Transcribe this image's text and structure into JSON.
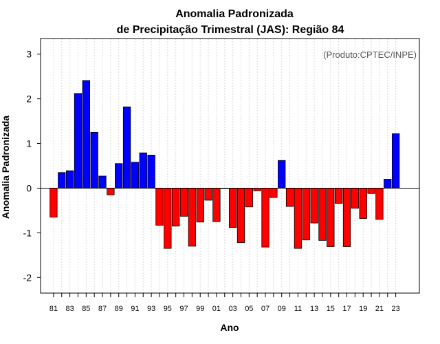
{
  "chart_data": {
    "type": "bar",
    "title": [
      "Anomalia Padronizada",
      "de Precipitação Trimestral (JAS): Região 84"
    ],
    "xlabel": "Ano",
    "ylabel": "Anomalia Padronizada",
    "credit": "(Produto:CPTEC/INPE)",
    "ylim": [
      -2.35,
      3.35
    ],
    "yticks": [
      -2,
      -1,
      0,
      1,
      2,
      3
    ],
    "categories": [
      "81",
      "82",
      "83",
      "84",
      "85",
      "86",
      "87",
      "88",
      "89",
      "90",
      "91",
      "92",
      "93",
      "94",
      "95",
      "96",
      "97",
      "98",
      "99",
      "00",
      "01",
      "02",
      "03",
      "04",
      "05",
      "06",
      "07",
      "08",
      "09",
      "10",
      "11",
      "12",
      "13",
      "14",
      "15",
      "16",
      "17",
      "18",
      "19",
      "20",
      "21",
      "22",
      "23"
    ],
    "xtick_labels": [
      "81",
      "83",
      "85",
      "87",
      "89",
      "91",
      "93",
      "95",
      "97",
      "99",
      "01",
      "03",
      "05",
      "07",
      "09",
      "11",
      "13",
      "15",
      "17",
      "19",
      "21",
      "23"
    ],
    "values": [
      -0.65,
      0.35,
      0.39,
      2.12,
      2.41,
      1.25,
      0.27,
      -0.15,
      0.55,
      1.82,
      0.58,
      0.79,
      0.74,
      -0.83,
      -1.35,
      -0.85,
      -0.63,
      -1.3,
      -0.76,
      -0.27,
      -0.75,
      -0.01,
      -0.88,
      -1.22,
      -0.42,
      -0.06,
      -1.32,
      -0.21,
      0.62,
      -0.41,
      -1.35,
      -1.16,
      -0.78,
      -1.17,
      -1.31,
      -0.34,
      -1.31,
      -0.45,
      -0.68,
      -0.12,
      -0.7,
      0.2,
      1.22
    ],
    "colors": {
      "positive": "#0000ff",
      "negative": "#ff0000"
    },
    "grid": true
  }
}
